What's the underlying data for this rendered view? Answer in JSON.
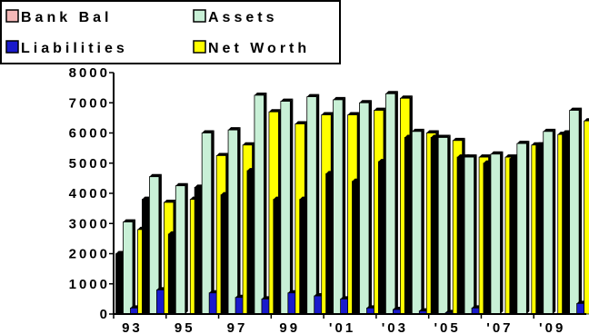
{
  "chart_data": {
    "type": "bar",
    "title": "",
    "xlabel": "",
    "ylabel": "",
    "ylim": [
      0,
      8000
    ],
    "yticks": [
      0,
      1000,
      2000,
      3000,
      4000,
      5000,
      6000,
      7000,
      8000
    ],
    "ytick_labels": [
      "0",
      "1000",
      "2000",
      "3000",
      "4000",
      "5000",
      "6000",
      "7000",
      "8000"
    ],
    "xtick_labels": [
      "93",
      "95",
      "97",
      "99",
      "'01",
      "'03",
      "'05",
      "'07",
      "'09"
    ],
    "categories": [
      "1993",
      "1994",
      "1995",
      "1996",
      "1997",
      "1998",
      "1999",
      "2000",
      "2001",
      "2002",
      "2003",
      "2004",
      "2005",
      "2006",
      "2007",
      "2008",
      "2009",
      "2010"
    ],
    "legend_position": "top-left",
    "grid": false,
    "series": [
      {
        "name": "Bank Bal",
        "color": "#000000",
        "legend_color": "#f4b8b8",
        "values": [
          2000,
          3800,
          2650,
          4200,
          3950,
          4750,
          3800,
          3800,
          4650,
          4400,
          5050,
          5850,
          5850,
          5200,
          5000,
          5150,
          5600,
          6000
        ]
      },
      {
        "name": "Assets",
        "color": "#c8f0d6",
        "values": [
          3050,
          4550,
          4250,
          6000,
          6100,
          7250,
          7050,
          7200,
          7100,
          7000,
          7300,
          6050,
          5850,
          5200,
          5300,
          5650,
          6050,
          6750
        ]
      },
      {
        "name": "Liabilities",
        "color": "#1a1acc",
        "values": [
          200,
          800,
          0,
          700,
          550,
          500,
          700,
          600,
          500,
          200,
          150,
          100,
          50,
          200,
          0,
          0,
          0,
          350
        ]
      },
      {
        "name": "Net Worth",
        "color": "#ffff00",
        "values": [
          2800,
          3700,
          3800,
          5250,
          5600,
          6700,
          6300,
          6600,
          6600,
          6750,
          7150,
          6000,
          5750,
          5200,
          5200,
          5600,
          5950,
          6400
        ]
      }
    ]
  }
}
